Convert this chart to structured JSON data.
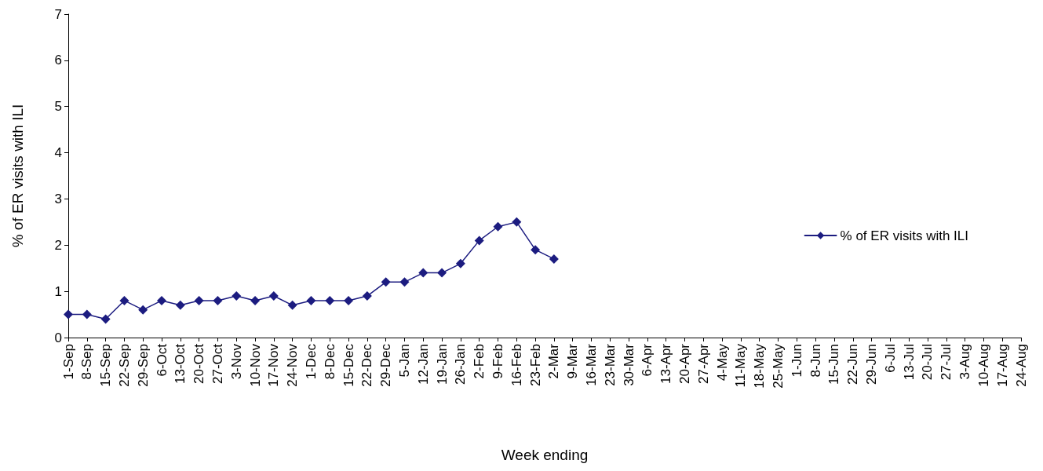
{
  "chart_data": {
    "type": "line",
    "xlabel": "Week ending",
    "ylabel": "% of ER visits with ILI",
    "categories": [
      "1-Sep",
      "8-Sep",
      "15-Sep",
      "22-Sep",
      "29-Sep",
      "6-Oct",
      "13-Oct",
      "20-Oct",
      "27-Oct",
      "3-Nov",
      "10-Nov",
      "17-Nov",
      "24-Nov",
      "1-Dec",
      "8-Dec",
      "15-Dec",
      "22-Dec",
      "29-Dec",
      "5-Jan",
      "12-Jan",
      "19-Jan",
      "26-Jan",
      "2-Feb",
      "9-Feb",
      "16-Feb",
      "23-Feb",
      "2-Mar",
      "9-Mar",
      "16-Mar",
      "23-Mar",
      "30-Mar",
      "6-Apr",
      "13-Apr",
      "20-Apr",
      "27-Apr",
      "4-May",
      "11-May",
      "18-May",
      "25-May",
      "1-Jun",
      "8-Jun",
      "15-Jun",
      "22-Jun",
      "29-Jun",
      "6-Jul",
      "13-Jul",
      "20-Jul",
      "27-Jul",
      "3-Aug",
      "10-Aug",
      "17-Aug",
      "24-Aug"
    ],
    "series": [
      {
        "name": "% of ER visits with ILI",
        "color": "#1c1c80",
        "values": [
          0.5,
          0.5,
          0.4,
          0.8,
          0.6,
          0.8,
          0.7,
          0.8,
          0.8,
          0.9,
          0.8,
          0.9,
          0.7,
          0.8,
          0.8,
          0.8,
          0.9,
          1.2,
          1.2,
          1.4,
          1.4,
          1.6,
          2.1,
          2.4,
          2.5,
          1.9,
          1.7,
          null,
          null,
          null,
          null,
          null,
          null,
          null,
          null,
          null,
          null,
          null,
          null,
          null,
          null,
          null,
          null,
          null,
          null,
          null,
          null,
          null,
          null,
          null,
          null,
          null
        ]
      }
    ],
    "ylim": [
      0,
      7
    ],
    "yticks": [
      0,
      1,
      2,
      3,
      4,
      5,
      6,
      7
    ],
    "grid": false,
    "legend": "right",
    "marker": "diamond",
    "line_style": "solid"
  }
}
